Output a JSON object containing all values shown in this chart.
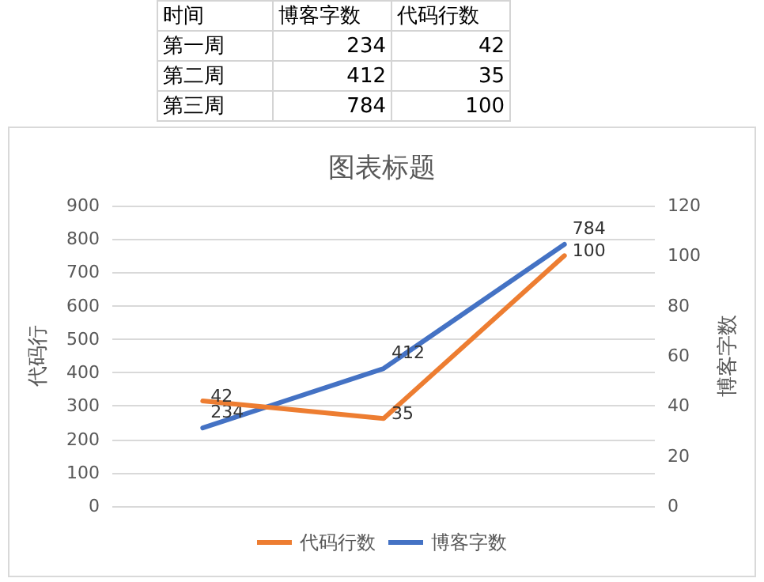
{
  "chart_data": {
    "type": "line",
    "title": "图表标题",
    "ylabel": "代码行",
    "y2label": "博客字数",
    "annotations": [
      "时间",
      "博客字数",
      "代码行数",
      "第一周",
      "234",
      "42",
      "第二周",
      "412",
      "35",
      "第三周",
      "784",
      "100"
    ],
    "categories": [
      null,
      null,
      null
    ],
    "series": [
      {
        "name": "代码行数",
        "color": "#ed7d31",
        "values": [
          42,
          35,
          100
        ],
        "axis": "y2"
      },
      {
        "name": "博客字数",
        "color": "#4472c4",
        "values": [
          234,
          412,
          784
        ]
      }
    ],
    "ylim": [
      0,
      900
    ],
    "yticks": [
      0,
      100,
      200,
      300,
      400,
      500,
      600,
      700,
      800,
      900
    ],
    "y2lim": [
      0,
      120
    ],
    "y2ticks": [
      0,
      20,
      40,
      60,
      80,
      100,
      120
    ],
    "grid": "y",
    "legend": "bottom",
    "data_labels": true,
    "marker": "none",
    "line_style": "solid",
    "tick_labels": "y"
  }
}
